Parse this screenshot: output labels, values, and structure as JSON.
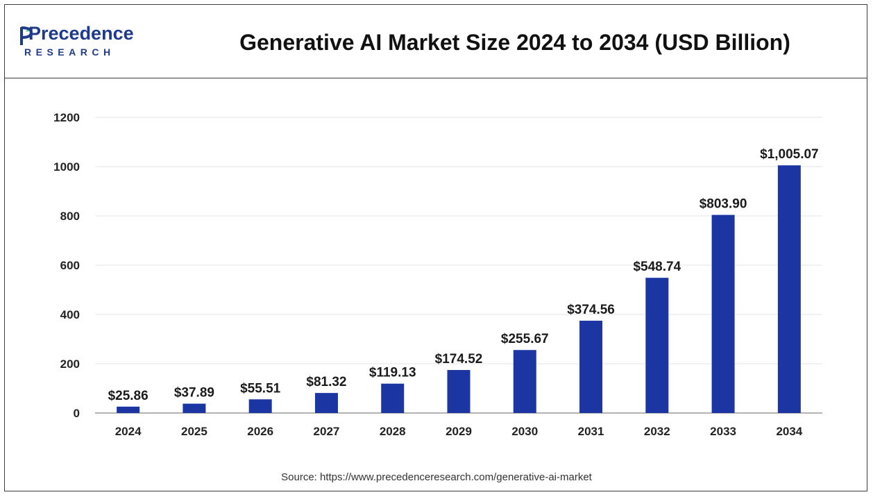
{
  "header": {
    "logo_word": "Precedence",
    "logo_sub": "RESEARCH",
    "title": "Generative AI Market Size 2024 to 2034 (USD Billion)"
  },
  "source": "Source: https://www.precedenceresearch.com/generative-ai-market",
  "colors": {
    "bar": "#1b36a3",
    "grid": "#e6e6e6",
    "axis": "#9a9a9a",
    "logo": "#1e3a8a"
  },
  "chart_data": {
    "type": "bar",
    "title": "Generative AI Market Size 2024 to 2034 (USD Billion)",
    "xlabel": "",
    "ylabel": "",
    "categories": [
      "2024",
      "2025",
      "2026",
      "2027",
      "2028",
      "2029",
      "2030",
      "2031",
      "2032",
      "2033",
      "2034"
    ],
    "values": [
      25.86,
      37.89,
      55.51,
      81.32,
      119.13,
      174.52,
      255.67,
      374.56,
      548.74,
      803.9,
      1005.07
    ],
    "data_labels": [
      "$25.86",
      "$37.89",
      "$55.51",
      "$81.32",
      "$119.13",
      "$174.52",
      "$255.67",
      "$374.56",
      "$548.74",
      "$803.90",
      "$1,005.07"
    ],
    "ylim": [
      0,
      1200
    ],
    "yticks": [
      0,
      200,
      400,
      600,
      800,
      1000,
      1200
    ],
    "grid": true,
    "legend": "none"
  }
}
